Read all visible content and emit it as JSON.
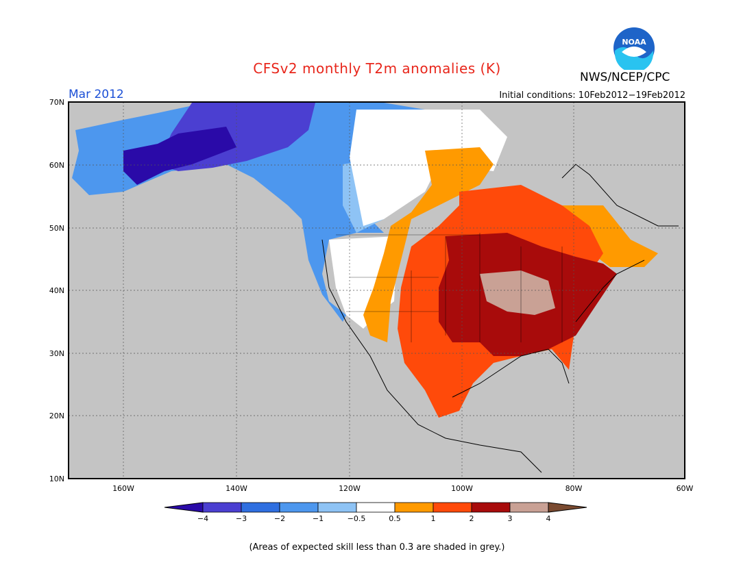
{
  "header": {
    "title": "CFSv2 monthly T2m anomalies (K)",
    "agency": "NWS/NCEP/CPC",
    "period": "Mar 2012",
    "initial_conditions": "Initial conditions: 10Feb2012−19Feb2012",
    "logo_text": "NOAA"
  },
  "axes": {
    "lat_labels": [
      "70N",
      "60N",
      "50N",
      "40N",
      "30N",
      "20N",
      "10N"
    ],
    "lon_labels": [
      "160W",
      "140W",
      "120W",
      "100W",
      "80W",
      "60W"
    ]
  },
  "colorbar": {
    "labels": [
      "−4",
      "−3",
      "−2",
      "−1",
      "−0.5",
      "0.5",
      "1",
      "2",
      "3",
      "4"
    ],
    "colors": [
      "#2a0aa8",
      "#4b3fd1",
      "#2f6fe0",
      "#4d97ee",
      "#8ec3f5",
      "#ffffff",
      "#ff9a00",
      "#ff4a0a",
      "#a80b0b",
      "#c9a195",
      "#7a4a30"
    ]
  },
  "legend_note": "(Areas of expected skill less than 0.3 are shaded in grey.)",
  "map": {
    "ocean_color": "#c4c4c4",
    "skill_grey": "#c4c4c4"
  }
}
